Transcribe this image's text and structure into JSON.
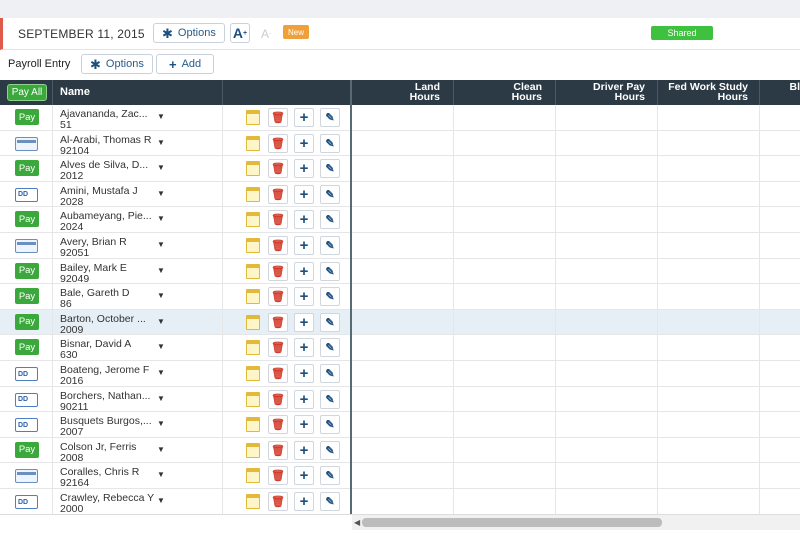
{
  "header": {
    "date": "SEPTEMBER 11, 2015",
    "options_label": "Options",
    "font_increase": "A",
    "font_decrease": "A",
    "new_badge": "New",
    "shared_badge": "Shared"
  },
  "subbar": {
    "title": "Payroll Entry",
    "options_label": "Options",
    "add_label": "Add"
  },
  "grid": {
    "pay_all_label": "Pay All",
    "name_header": "Name",
    "columns": [
      {
        "line1": "Land",
        "line2": "Hours"
      },
      {
        "line1": "Clean",
        "line2": "Hours"
      },
      {
        "line1": "Driver Pay",
        "line2": "Hours"
      },
      {
        "line1": "Fed Work Study",
        "line2": "Hours"
      },
      {
        "line1": "Bl",
        "line2": ""
      }
    ],
    "rows": [
      {
        "status": "Pay",
        "name": "Ajavananda, Zac...",
        "id": "51"
      },
      {
        "status": "card",
        "name": "Al-Arabi, Thomas R",
        "id": "92104"
      },
      {
        "status": "Pay",
        "name": "Alves de Silva, D...",
        "id": "2012"
      },
      {
        "status": "dd",
        "name": "Amini, Mustafa J",
        "id": "2028"
      },
      {
        "status": "Pay",
        "name": "Aubameyang, Pie...",
        "id": "2024"
      },
      {
        "status": "card",
        "name": "Avery, Brian R",
        "id": "92051"
      },
      {
        "status": "Pay",
        "name": "Bailey, Mark E",
        "id": "92049"
      },
      {
        "status": "Pay",
        "name": "Bale, Gareth D",
        "id": "86"
      },
      {
        "status": "Pay",
        "name": "Barton, October ...",
        "id": "2009"
      },
      {
        "status": "Pay",
        "name": "Bisnar, David A",
        "id": "630"
      },
      {
        "status": "dd",
        "name": "Boateng, Jerome F",
        "id": "2016"
      },
      {
        "status": "dd",
        "name": "Borchers, Nathan...",
        "id": "90211"
      },
      {
        "status": "dd",
        "name": "Busquets Burgos,...",
        "id": "2007"
      },
      {
        "status": "Pay",
        "name": "Colson Jr, Ferris",
        "id": "2008"
      },
      {
        "status": "card",
        "name": "Coralles, Chris R",
        "id": "92164"
      },
      {
        "status": "dd",
        "name": "Crawley, Rebecca Y",
        "id": "2000"
      }
    ],
    "highlighted_row": 8
  },
  "colors": {
    "accent_red": "#e05a4a",
    "pay_green": "#3aa83a",
    "header_dark": "#2b3a44",
    "new_orange": "#f0a03a",
    "shared_green": "#3ec13e"
  },
  "icons": [
    "gear-icon",
    "plus-icon",
    "font-increase-icon",
    "font-decrease-icon",
    "sheet-icon",
    "trash-icon",
    "edit-icon",
    "caret-down-icon",
    "card-icon",
    "direct-deposit-icon"
  ]
}
